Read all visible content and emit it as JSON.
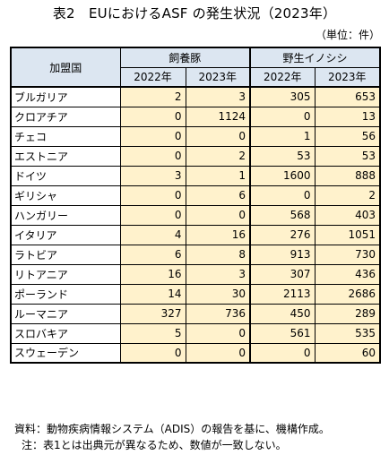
{
  "title": "表2　EUにおけるASF の発生状況（2023年）",
  "unit": "（単位：件）",
  "table": {
    "header_country": "加盟国",
    "group_farm": "飼養豚",
    "group_wild": "野生イノシシ",
    "years": [
      "2022年",
      "2023年",
      "2022年",
      "2023年"
    ],
    "rows": [
      {
        "country": "ブルガリア",
        "farm2022": "2",
        "farm2023": "3",
        "wild2022": "305",
        "wild2023": "653"
      },
      {
        "country": "クロアチア",
        "farm2022": "0",
        "farm2023": "1124",
        "wild2022": "0",
        "wild2023": "13"
      },
      {
        "country": "チェコ",
        "farm2022": "0",
        "farm2023": "0",
        "wild2022": "1",
        "wild2023": "56"
      },
      {
        "country": "エストニア",
        "farm2022": "0",
        "farm2023": "2",
        "wild2022": "53",
        "wild2023": "53"
      },
      {
        "country": "ドイツ",
        "farm2022": "3",
        "farm2023": "1",
        "wild2022": "1600",
        "wild2023": "888"
      },
      {
        "country": "ギリシャ",
        "farm2022": "0",
        "farm2023": "6",
        "wild2022": "0",
        "wild2023": "2"
      },
      {
        "country": "ハンガリー",
        "farm2022": "0",
        "farm2023": "0",
        "wild2022": "568",
        "wild2023": "403"
      },
      {
        "country": "イタリア",
        "farm2022": "4",
        "farm2023": "16",
        "wild2022": "276",
        "wild2023": "1051"
      },
      {
        "country": "ラトビア",
        "farm2022": "6",
        "farm2023": "8",
        "wild2022": "913",
        "wild2023": "730"
      },
      {
        "country": "リトアニア",
        "farm2022": "16",
        "farm2023": "3",
        "wild2022": "307",
        "wild2023": "436"
      },
      {
        "country": "ポーランド",
        "farm2022": "14",
        "farm2023": "30",
        "wild2022": "2113",
        "wild2023": "2686"
      },
      {
        "country": "ルーマニア",
        "farm2022": "327",
        "farm2023": "736",
        "wild2022": "450",
        "wild2023": "289"
      },
      {
        "country": "スロバキア",
        "farm2022": "5",
        "farm2023": "0",
        "wild2022": "561",
        "wild2023": "535"
      },
      {
        "country": "スウェーデン",
        "farm2022": "0",
        "farm2023": "0",
        "wild2022": "0",
        "wild2023": "60"
      }
    ]
  },
  "notes": {
    "source": "資料：動物疾病情報システム（ADIS）の報告を基に、機構作成。",
    "note": "注：表1とは出典元が異なるため、数値が一致しない。"
  },
  "colors": {
    "header_bg": "#dce6f1",
    "data_bg": "#fff2cc",
    "border": "#000000"
  }
}
